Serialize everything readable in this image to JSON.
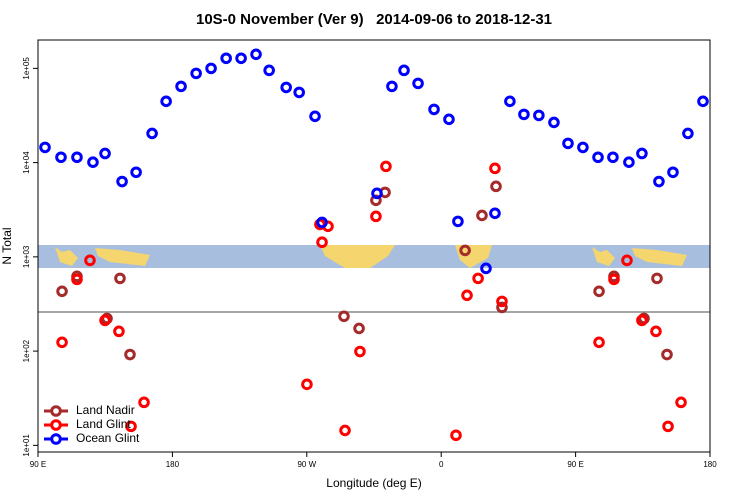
{
  "chart_data": {
    "type": "scatter",
    "title": "10S-0 November (Ver 9)   2014-09-06 to 2018-12-31",
    "x_label": "Longitude (deg E)",
    "y_label": "N Total",
    "xlim": [
      90,
      540
    ],
    "ylim": [
      8.5,
      200000
    ],
    "log_y": true,
    "legend": "bottom-left",
    "xticks": [
      {
        "value": 90,
        "label": "90 E"
      },
      180,
      {
        "value": 270,
        "label": "90 W"
      },
      {
        "value": 360,
        "label": "0"
      },
      {
        "value": 450,
        "label": "90 E"
      },
      {
        "value": 540,
        "label": "180"
      }
    ],
    "yticks": [
      {
        "value": 10,
        "label": "1e+01"
      },
      {
        "value": 100,
        "label": "1e+02"
      },
      {
        "value": 1000,
        "label": "1e+03"
      },
      {
        "value": 10000,
        "label": "1e+04"
      },
      {
        "value": 100000,
        "label": "1e+05"
      }
    ],
    "series": [
      {
        "name": "Land Nadir",
        "color": "#a52a2a",
        "x": [
          106.1,
          116.1,
          144.9,
          136.2,
          151.6,
          294.9,
          305,
          316.3,
          322.4,
          376,
          387.3,
          396.7,
          400.7,
          465.7,
          475.7,
          504.5,
          495.8,
          511.2
        ],
        "values": [
          431,
          621,
          591,
          222,
          92,
          234,
          174,
          3980,
          4830,
          1170,
          2750,
          5600,
          291,
          431,
          621,
          591,
          222,
          92
        ]
      },
      {
        "name": "Land Glint",
        "color": "#ff0000",
        "x": [
          106.1,
          116.1,
          124.8,
          134.9,
          144.2,
          152.3,
          161,
          270.1,
          278.8,
          280.2,
          284.2,
          295.6,
          305.6,
          316.3,
          323,
          369.9,
          377.3,
          384.7,
          396,
          400.7,
          484.4,
          475.7,
          465.7,
          494.4,
          503.8,
          511.9,
          520.6
        ],
        "values": [
          124,
          577,
          918,
          212,
          162,
          15.9,
          28.6,
          44.4,
          2210,
          1430,
          2110,
          14.4,
          99,
          2690,
          9120,
          12.8,
          391,
          591,
          8690,
          337,
          918,
          577,
          124,
          212,
          162,
          15.9,
          28.6
        ]
      },
      {
        "name": "Ocean Glint",
        "color": "#0000ff",
        "x": [
          94.7,
          105.4,
          116.1,
          126.8,
          134.9,
          146.3,
          155.7,
          166.4,
          175.8,
          185.8,
          195.9,
          205.9,
          216,
          226,
          236,
          244.8,
          256.2,
          264.9,
          275.5,
          280.2,
          317,
          327,
          335.1,
          344.5,
          355.2,
          365.2,
          371.2,
          390,
          396,
          406,
          415.4,
          425.4,
          435.5,
          444.9,
          454.9,
          465,
          475,
          485.7,
          494.4,
          505.8,
          515.2,
          525.2,
          535.3
        ],
        "values": [
          14500,
          11400,
          11400,
          10100,
          12500,
          6300,
          7900,
          20400,
          44700,
          64400,
          88500,
          100000,
          128000,
          128000,
          141000,
          95300,
          62800,
          55600,
          31000,
          2320,
          4720,
          64400,
          95300,
          69300,
          36700,
          28800,
          2380,
          755,
          2900,
          44700,
          32500,
          31700,
          26700,
          16000,
          14500,
          11400,
          11400,
          10100,
          12500,
          6300,
          7900,
          20400,
          44700
        ]
      }
    ]
  }
}
